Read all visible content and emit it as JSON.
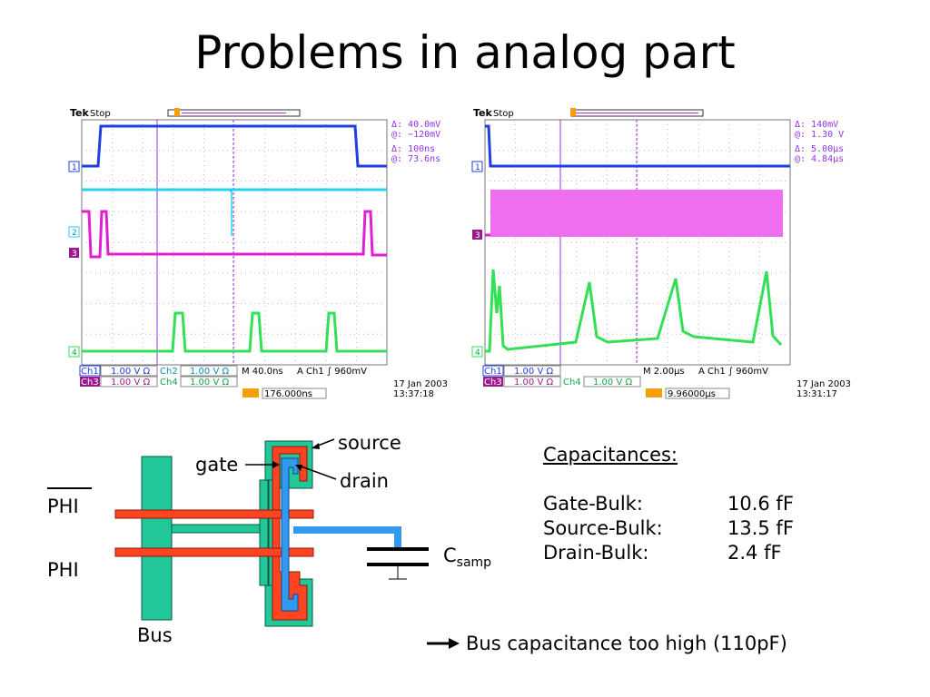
{
  "slide": {
    "title": "Problems in analog part"
  },
  "scope1": {
    "brand": "Tek",
    "state": "Stop",
    "cursor_delta_v": "Δ:  40.0mV",
    "cursor_at_v": "@:  −120mV",
    "cursor_delta_t": "Δ:   100ns",
    "cursor_at_t": "@:   73.6ns",
    "ch1_label": "Ch1",
    "ch1_scale": "1.00 V Ω",
    "ch2_label": "Ch2",
    "ch2_scale": "1.00 V Ω",
    "ch3_label": "Ch3",
    "ch3_scale": "1.00 V Ω",
    "ch4_label": "Ch4",
    "ch4_scale": "1.00 V Ω",
    "timebase": "M 40.0ns",
    "trigger": "A  Ch1  ∫   960mV",
    "trigger_pos": "176.000ns",
    "date": "17 Jan  2003",
    "time": "13:37:18",
    "markers": [
      "1",
      "2",
      "3",
      "4"
    ]
  },
  "scope2": {
    "brand": "Tek",
    "state": "Stop",
    "cursor_delta_v": "Δ:   140mV",
    "cursor_at_v": "@:   1.30 V",
    "cursor_delta_t": "Δ:   5.00μs",
    "cursor_at_t": "@:   4.84μs",
    "ch1_label": "Ch1",
    "ch1_scale": "1.00 V Ω",
    "ch3_label": "Ch3",
    "ch3_scale": "1.00 V Ω",
    "ch4_label": "Ch4",
    "ch4_scale": "1.00 V Ω",
    "timebase": "M 2.00μs",
    "trigger": "A  Ch1  ∫   960mV",
    "trigger_pos": "9.96000μs",
    "date": "17 Jan  2003",
    "time": "13:31:17",
    "markers": [
      "1",
      "3",
      "4"
    ]
  },
  "layout_diagram": {
    "source": "source",
    "gate": "gate",
    "drain": "drain",
    "phi_bar": "PHI",
    "phi": "PHI",
    "bus": "Bus",
    "csamp_main": "C",
    "csamp_sub": "samp",
    "colors": {
      "poly": "#ff4422",
      "metal": "#3399ee",
      "diffusion": "#22c79a"
    }
  },
  "capacitances": {
    "heading": "Capacitances:",
    "rows": [
      {
        "name": "Gate-Bulk:",
        "value": "10.6 fF"
      },
      {
        "name": "Source-Bulk:",
        "value": "13.5 fF"
      },
      {
        "name": "Drain-Bulk:",
        "value": "2.4  fF"
      }
    ]
  },
  "conclusion": "Bus capacitance too high (110pF)",
  "trace_colors": {
    "ch1": "#1f3fe0",
    "ch2": "#22d3ee",
    "ch3": "#e020d0",
    "ch4": "#33e055"
  }
}
